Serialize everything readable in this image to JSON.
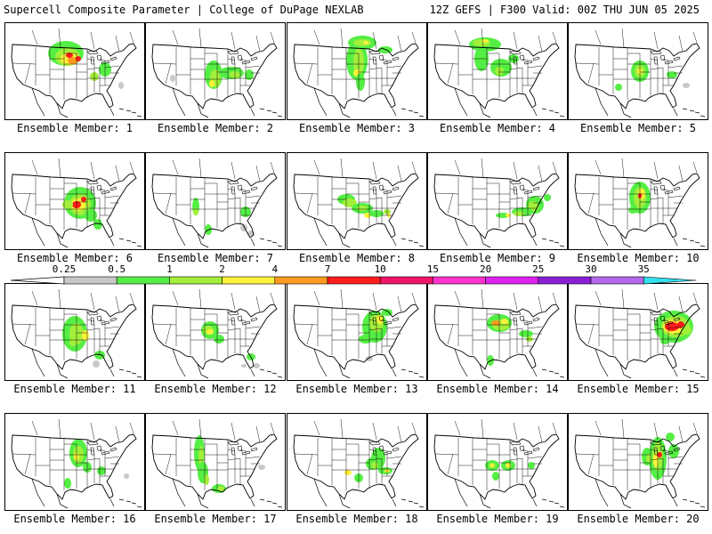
{
  "header": {
    "title": "Supercell Composite Parameter | College of DuPage NEXLAB",
    "run_info": "12Z GEFS | F300 Valid: 00Z THU JUN 05 2025"
  },
  "legend": {
    "ticks": [
      "0.25",
      "0.5",
      "1",
      "2",
      "4",
      "7",
      "10",
      "15",
      "20",
      "25",
      "30",
      "35"
    ],
    "colors": [
      "#c8c8c8",
      "#55ee44",
      "#a4ef3a",
      "#fff23a",
      "#ff9a20",
      "#ff1c1c",
      "#ee1565",
      "#ff33cc",
      "#dd22ee",
      "#8a1fd6",
      "#b468ee",
      "#33e0ee"
    ]
  },
  "members": [
    {
      "label": "Ensemble Member: 1"
    },
    {
      "label": "Ensemble Member: 2"
    },
    {
      "label": "Ensemble Member: 3"
    },
    {
      "label": "Ensemble Member: 4"
    },
    {
      "label": "Ensemble Member: 5"
    },
    {
      "label": "Ensemble Member: 6"
    },
    {
      "label": "Ensemble Member: 7"
    },
    {
      "label": "Ensemble Member: 8"
    },
    {
      "label": "Ensemble Member: 9"
    },
    {
      "label": "Ensemble Member: 10"
    },
    {
      "label": "Ensemble Member: 11"
    },
    {
      "label": "Ensemble Member: 12"
    },
    {
      "label": "Ensemble Member: 13"
    },
    {
      "label": "Ensemble Member: 14"
    },
    {
      "label": "Ensemble Member: 15"
    },
    {
      "label": "Ensemble Member: 16"
    },
    {
      "label": "Ensemble Member: 17"
    },
    {
      "label": "Ensemble Member: 18"
    },
    {
      "label": "Ensemble Member: 19"
    },
    {
      "label": "Ensemble Member: 20"
    }
  ]
}
